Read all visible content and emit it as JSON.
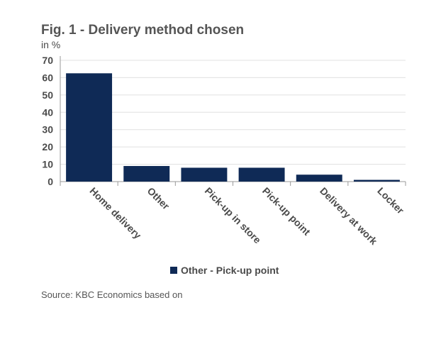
{
  "figure": {
    "title": "Fig. 1 - Delivery method chosen",
    "source": "Source: KBC Economics based on"
  },
  "chart_data": {
    "type": "bar",
    "title": "Fig. 1 - Delivery method chosen",
    "ylabel": "in %",
    "xlabel": "",
    "ylim": [
      0,
      70
    ],
    "yticks": [
      0,
      10,
      20,
      30,
      40,
      50,
      60,
      70
    ],
    "grid": true,
    "legend_position": "bottom-center",
    "categories": [
      "Home delivery",
      "Other",
      "Pick-up in store",
      "Pick-up point",
      "Delivery at work",
      "Locker"
    ],
    "series": [
      {
        "name": "Other - Pick-up point",
        "values": [
          62.5,
          9,
          8,
          8,
          4,
          1
        ]
      }
    ],
    "colors": {
      "bar": "#0f2a56",
      "grid": "#e0e0e0",
      "axis": "#9a9a9a",
      "text": "#4a4a4a"
    }
  }
}
